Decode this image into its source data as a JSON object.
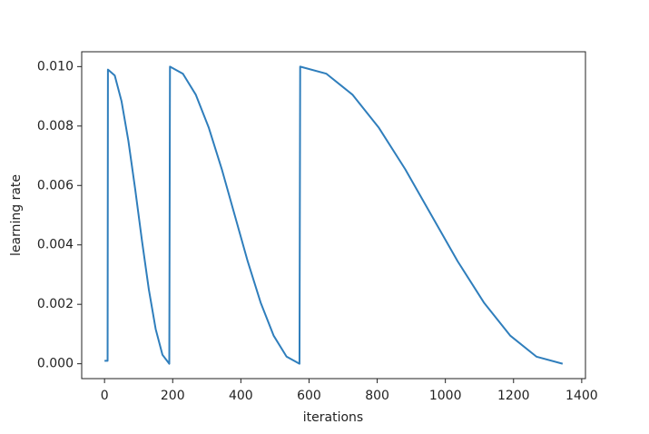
{
  "chart_data": {
    "type": "line",
    "xlabel": "iterations",
    "ylabel": "learning rate",
    "x": [
      0,
      9,
      10,
      30,
      50,
      70,
      90,
      110,
      130,
      150,
      170,
      190,
      192,
      230,
      268,
      306,
      344,
      382,
      420,
      458,
      496,
      534,
      572,
      574,
      651,
      728,
      805,
      882,
      959,
      1036,
      1113,
      1190,
      1267,
      1344
    ],
    "series": [
      {
        "name": "learning rate",
        "color": "#2f7ebc",
        "values": [
          0.0001,
          0.0001,
          0.0099,
          0.0097,
          0.00883,
          0.0075,
          0.00587,
          0.00413,
          0.0025,
          0.00117,
          0.0003,
          0,
          0.01,
          0.00976,
          0.00905,
          0.00794,
          0.00655,
          0.005,
          0.00345,
          0.00206,
          0.00095,
          0.00024,
          0,
          0.01,
          0.00976,
          0.00905,
          0.00794,
          0.00655,
          0.005,
          0.00345,
          0.00206,
          0.00095,
          0.00024,
          0
        ]
      }
    ],
    "xlim": [
      -67,
      1411
    ],
    "ylim": [
      -0.0005,
      0.0105
    ],
    "xticks": [
      0,
      200,
      400,
      600,
      800,
      1000,
      1200,
      1400
    ],
    "yticks": [
      {
        "value": 0,
        "label": "0.000"
      },
      {
        "value": 0.002,
        "label": "0.002"
      },
      {
        "value": 0.004,
        "label": "0.004"
      },
      {
        "value": 0.006,
        "label": "0.006"
      },
      {
        "value": 0.008,
        "label": "0.008"
      },
      {
        "value": 0.01,
        "label": "0.010"
      }
    ],
    "grid": false
  }
}
